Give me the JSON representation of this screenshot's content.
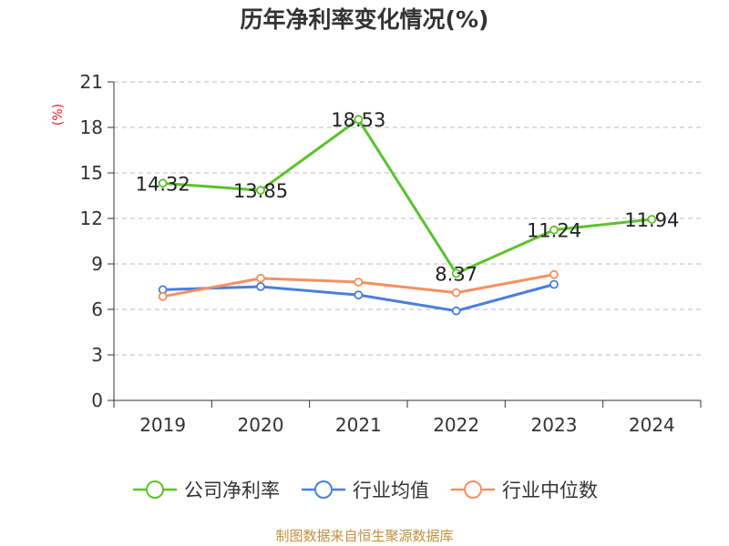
{
  "chart_data": {
    "type": "line",
    "title": "历年净利率变化情况(%)",
    "ylabel": "(%)",
    "xlabel": "",
    "categories": [
      "2019",
      "2020",
      "2021",
      "2022",
      "2023",
      "2024"
    ],
    "ylim": [
      0,
      21
    ],
    "yticks": [
      0,
      3,
      6,
      9,
      12,
      15,
      18,
      21
    ],
    "grid": true,
    "legend_position": "bottom",
    "series": [
      {
        "name": "公司净利率",
        "color": "#5cc22a",
        "values": [
          14.32,
          13.85,
          18.53,
          8.37,
          11.24,
          11.94
        ],
        "labels": [
          "14.32",
          "13.85",
          "18.53",
          "8.37",
          "11.24",
          "11.94"
        ]
      },
      {
        "name": "行业均值",
        "color": "#4a7fdc",
        "values": [
          7.3,
          7.5,
          6.95,
          5.9,
          7.65,
          null
        ]
      },
      {
        "name": "行业中位数",
        "color": "#f59060",
        "values": [
          6.85,
          8.05,
          7.8,
          7.1,
          8.3,
          null
        ]
      }
    ]
  },
  "source": "制图数据来自恒生聚源数据库"
}
